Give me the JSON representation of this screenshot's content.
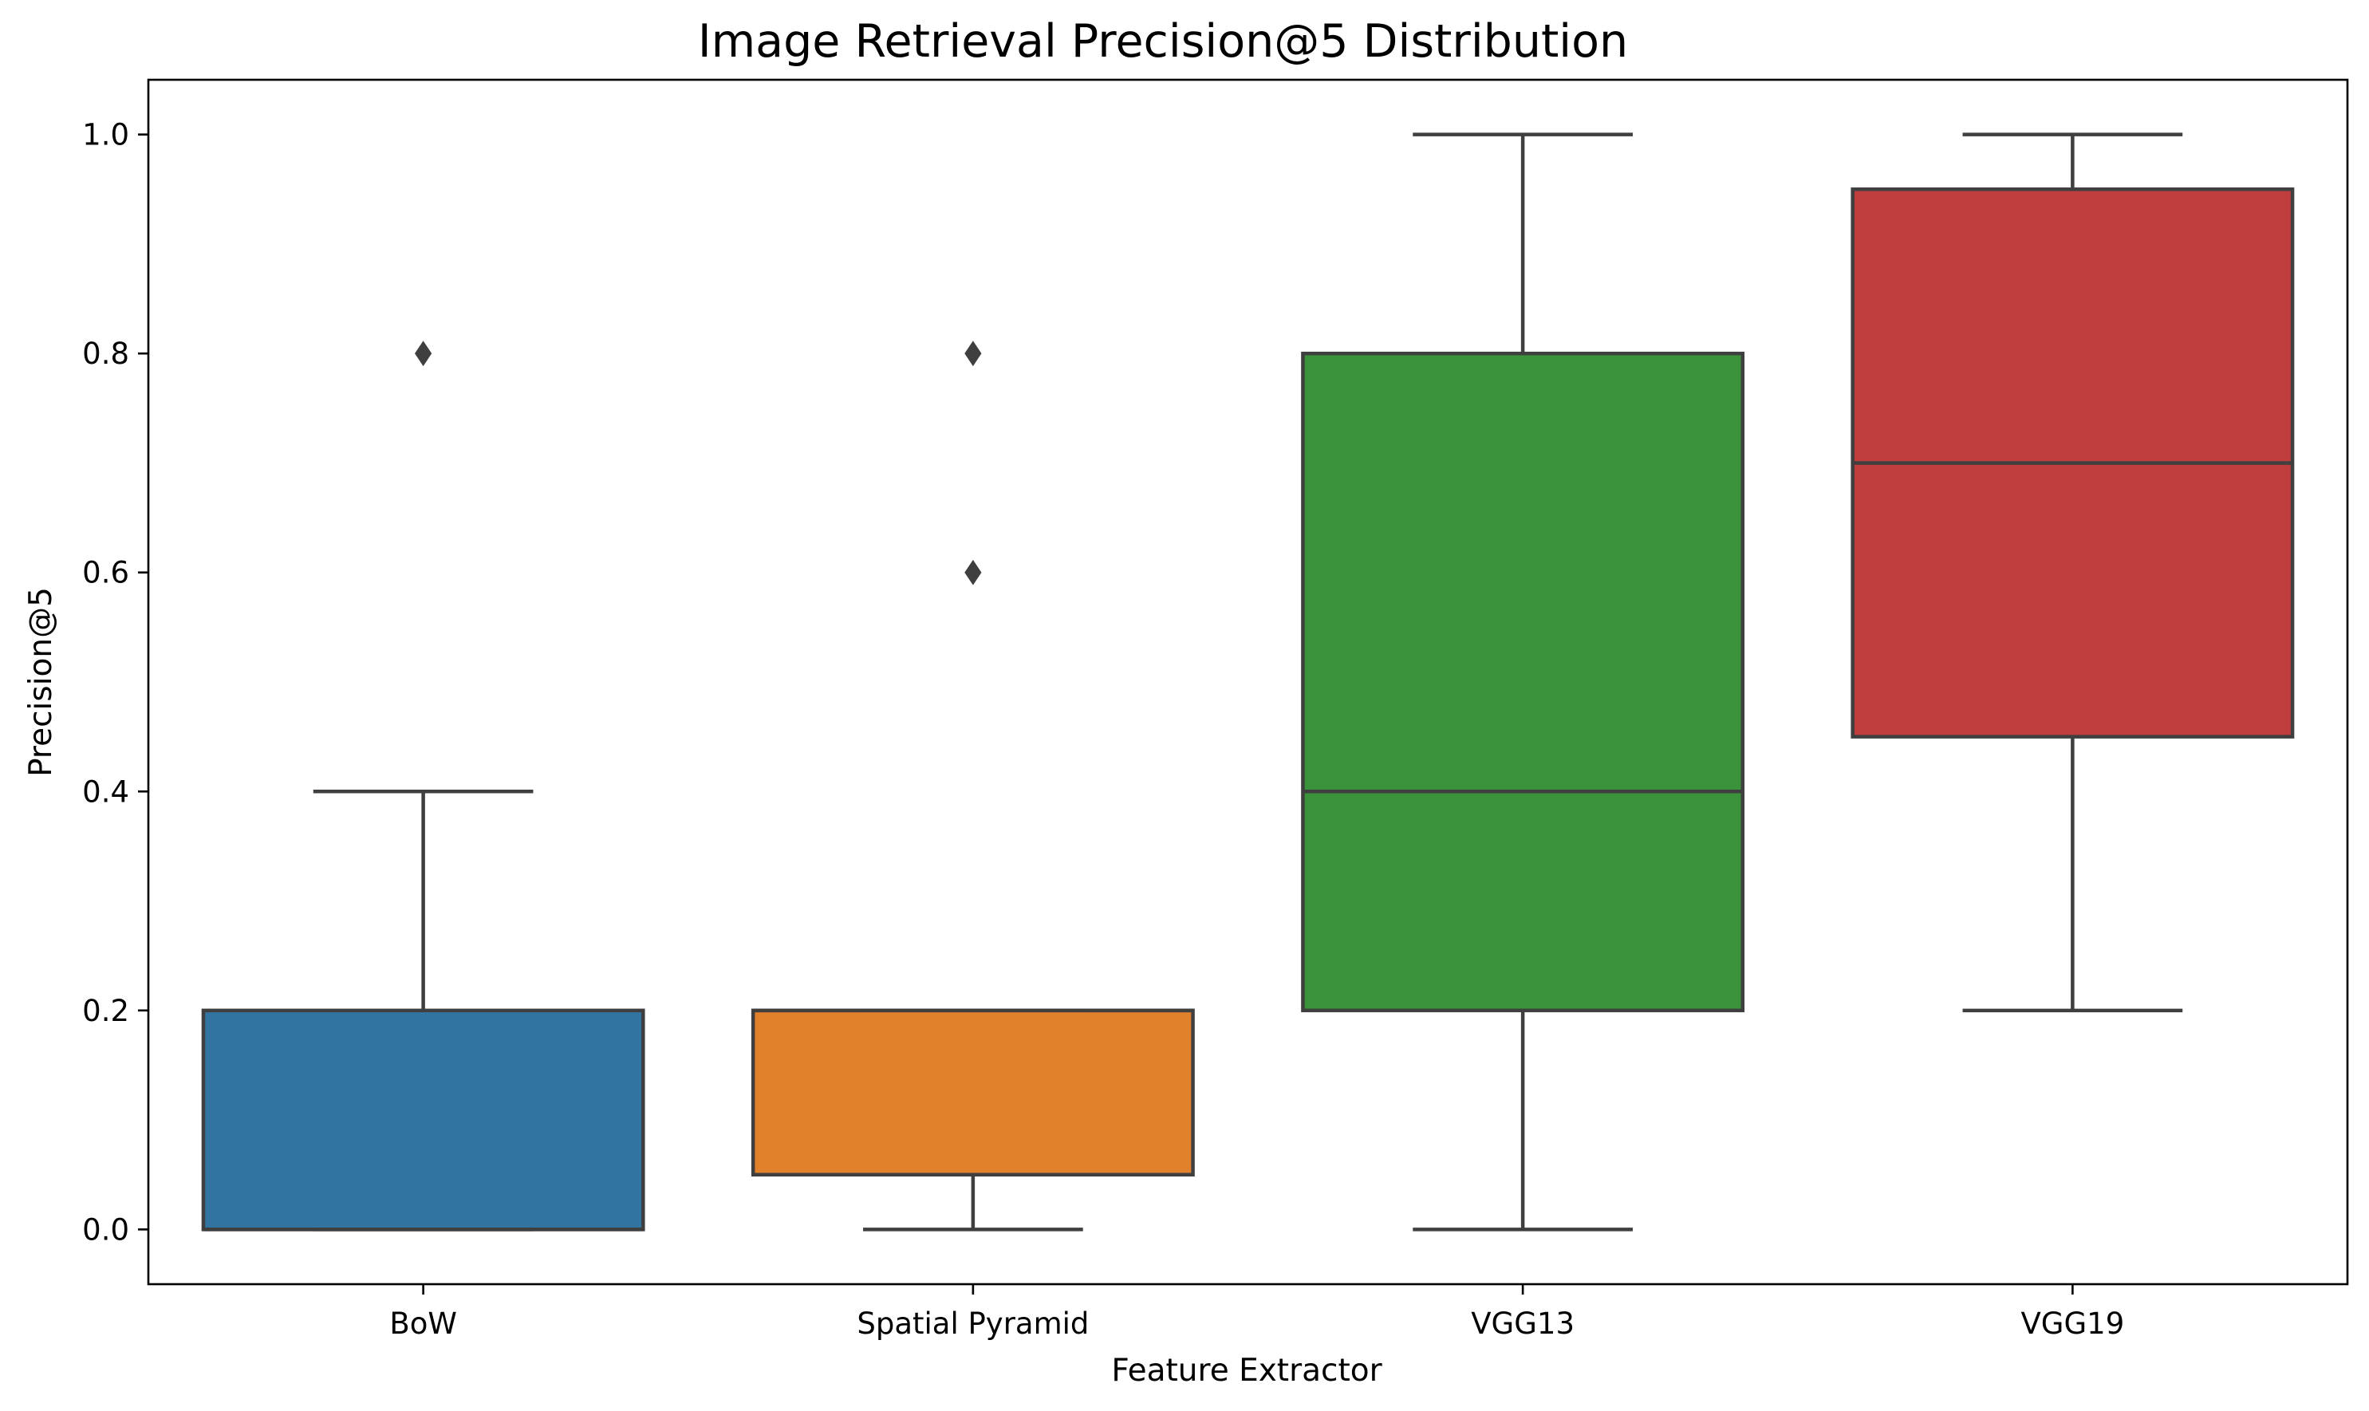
{
  "chart_data": {
    "type": "box",
    "title": "Image Retrieval Precision@5 Distribution",
    "xlabel": "Feature Extractor",
    "ylabel": "Precision@5",
    "ylim": [
      -0.05,
      1.05
    ],
    "yticks": [
      "0.0",
      "0.2",
      "0.4",
      "0.6",
      "0.8",
      "1.0"
    ],
    "yticks_values": [
      0.0,
      0.2,
      0.4,
      0.6,
      0.8,
      1.0
    ],
    "grid": false,
    "categories": [
      "BoW",
      "Spatial Pyramid",
      "VGG13",
      "VGG19"
    ],
    "boxes": [
      {
        "category": "BoW",
        "color": "#3274a1",
        "whisker_low": 0.0,
        "q1": 0.0,
        "median": 0.0,
        "q3": 0.2,
        "whisker_high": 0.4,
        "outliers": [
          0.8
        ]
      },
      {
        "category": "Spatial Pyramid",
        "color": "#e1812c",
        "whisker_low": 0.0,
        "q1": 0.05,
        "median": 0.2,
        "q3": 0.2,
        "whisker_high": 0.2,
        "outliers": [
          0.6,
          0.8
        ]
      },
      {
        "category": "VGG13",
        "color": "#3a923a",
        "whisker_low": 0.0,
        "q1": 0.2,
        "median": 0.4,
        "q3": 0.8,
        "whisker_high": 1.0,
        "outliers": []
      },
      {
        "category": "VGG19",
        "color": "#c03d3e",
        "whisker_low": 0.2,
        "q1": 0.45,
        "median": 0.7,
        "q3": 0.95,
        "whisker_high": 1.0,
        "outliers": []
      }
    ]
  }
}
